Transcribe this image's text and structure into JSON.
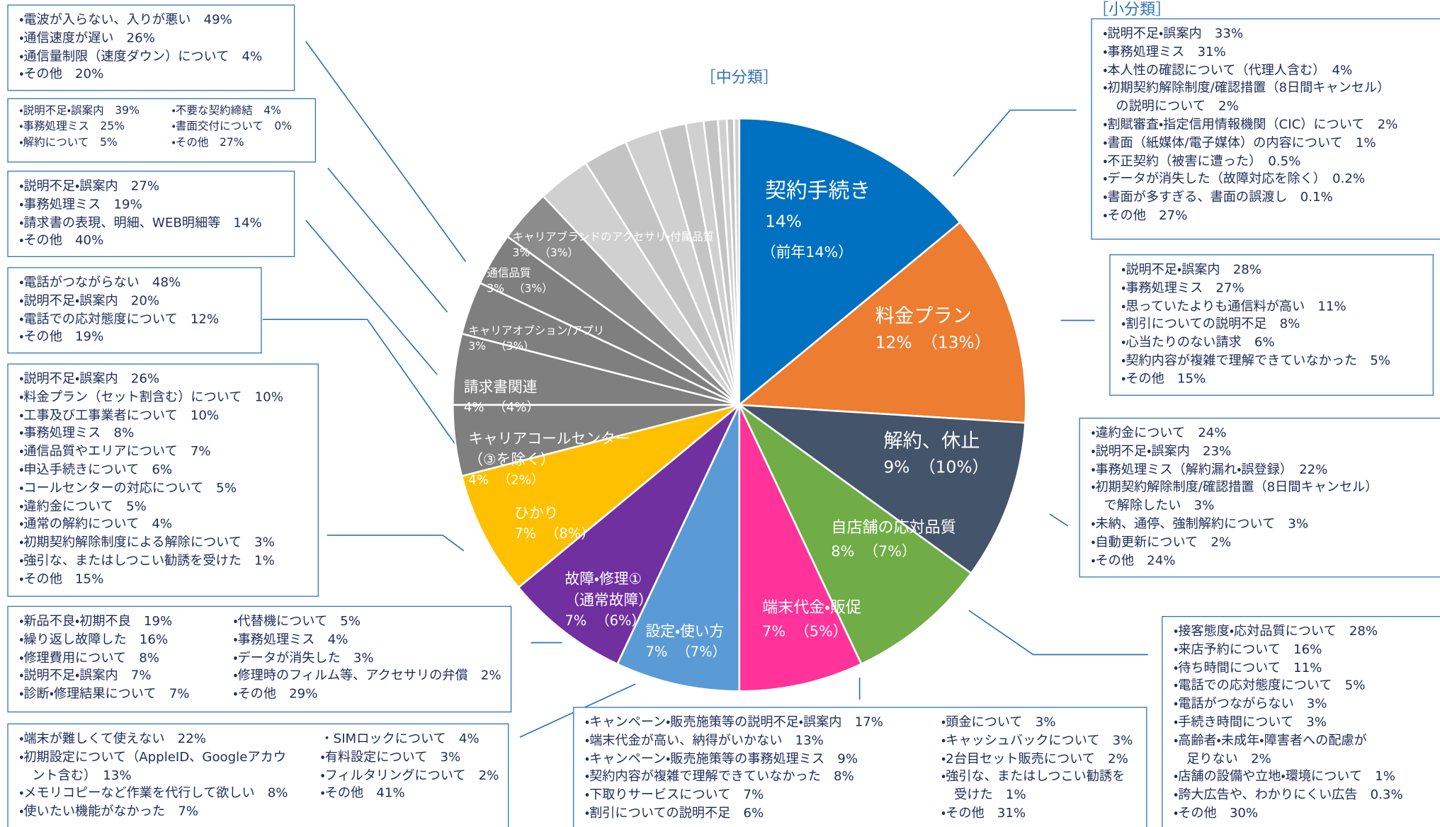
{
  "chart_data": {
    "type": "pie",
    "title": "［中分類］",
    "categories": [
      "契約手続き",
      "料金プラン",
      "解約、休止",
      "自店舗の応対品質",
      "端末代金・販促",
      "設定・使い方",
      "故障・修理①\n（通常故障）",
      "ひかり",
      "キャリアコールセンター\n（③を除く）",
      "請求書関連",
      "キャリアオプション/アプリ",
      "通信品質",
      "キャリアブランドのアクセサリ・付属品質",
      null,
      null,
      null,
      null,
      null,
      null,
      null,
      null,
      null
    ],
    "values": [
      14,
      12,
      9,
      8,
      7,
      7,
      7,
      7,
      4,
      4,
      3,
      3,
      3,
      3,
      2.5,
      2,
      1.5,
      1,
      0.8,
      0.5,
      0.4,
      0.3
    ],
    "value_labels": [
      "14%",
      "12%",
      "9%",
      "8%",
      "7%",
      "7%",
      "7%",
      "7%",
      "4%",
      "4%",
      "3%",
      "3%",
      "3%",
      null,
      null,
      null,
      null,
      null,
      null,
      null,
      null,
      null
    ],
    "prev_labels": [
      "（前年14%）",
      "（13%）",
      "（10%）",
      "（7%）",
      "（5%）",
      "（7%）",
      "（6%）",
      "（8%）",
      "（2%）",
      "（4%）",
      "（3%）",
      "（3%）",
      "（3%）",
      null,
      null,
      null,
      null,
      null,
      null,
      null,
      null,
      null
    ],
    "colors": [
      "#0070c0",
      "#ed7d31",
      "#44546a",
      "#70ad47",
      "#ff3399",
      "#5b9bd5",
      "#7030a0",
      "#ffc000",
      "#7f7f7f",
      "#7f7f7f",
      "#7f7f7f",
      "#7f7f7f",
      "#8c8c8c",
      "#d0d0d0",
      "#c4c4c4",
      "#d0d0d0",
      "#c4c4c4",
      "#d0d0d0",
      "#c4c4c4",
      "#d0d0d0",
      "#c4c4c4",
      "#d0d0d0"
    ]
  },
  "subtitle": "［小分類］",
  "boxes": [
    {
      "columns": [
        [
          "・電波が入らない、入りが悪い　49%",
          "・通信速度が遅い　26%",
          "・通信量制限（速度ダウン）について　4%",
          "・その他　20%"
        ]
      ]
    },
    {
      "columns": [
        [
          "・説明不足・誤案内　39%",
          "・事務処理ミス　25%",
          "・解約について　5%"
        ],
        [
          "・不要な契約締結　4%",
          "・書面交付について　0%",
          "・その他　27%"
        ]
      ]
    },
    {
      "columns": [
        [
          "・説明不足・誤案内　27%",
          "・事務処理ミス　19%",
          "・請求書の表現、明細、WEB明細等　14%",
          "・その他　40%"
        ]
      ]
    },
    {
      "columns": [
        [
          "・電話がつながらない　48%",
          "・説明不足・誤案内　20%",
          "・電話での応対態度について　12%",
          "・その他　19%"
        ]
      ]
    },
    {
      "columns": [
        [
          "・説明不足・誤案内　26%",
          "・料金プラン（セット割含む）について　10%",
          "・工事及び工事業者について　10%",
          "・事務処理ミス　8%",
          "・通信品質やエリアについて　7%",
          "・申込手続きについて　6%",
          "・コールセンターの対応について　5%",
          "・違約金について　5%",
          "・通常の解約について　4%",
          "・初期契約解除制度による解除について　3%",
          "・強引な、またはしつこい勧誘を受けた　1%",
          "・その他　15%"
        ]
      ]
    },
    {
      "columns": [
        [
          "・新品不良・初期不良　19%",
          "・繰り返し故障した　16%",
          "・修理費用について　8%",
          "・説明不足・誤案内　7%",
          "・診断・修理結果について　7%"
        ],
        [
          "・代替機について　5%",
          "・事務処理ミス　4%",
          "・データが消失した　3%",
          "・修理時のフィルム等、アクセサリの弁償　2%",
          "・その他　29%"
        ]
      ]
    },
    {
      "columns": [
        [
          "・端末が難しくて使えない　22%",
          "・初期設定について（AppleID、Googleアカウ",
          "　ント含む）　13%",
          "・メモリコピーなど作業を代行して欲しい　8%",
          "・使いたい機能がなかった　7%"
        ],
        [
          "・SIMロックについて　4%",
          "・有料設定について　3%",
          "・フィルタリングについて　2%",
          "・その他　41%"
        ]
      ]
    },
    {
      "columns": [
        [
          "・キャンペーン・販売施策等の説明不足・誤案内　17%",
          "・端末代金が高い、納得がいかない　13%",
          "・キャンペーン・販売施策等の事務処理ミス　9%",
          "・契約内容が複雑で理解できていなかった　8%",
          "・下取りサービスについて　7%",
          "・割引についての説明不足　6%"
        ],
        [
          "・頭金について　3%",
          "・キャッシュバックについて　3%",
          "・2台目セット販売について　2%",
          "・強引な、またはしつこい勧誘を",
          "　受けた　1%",
          "・その他　31%"
        ]
      ]
    },
    {
      "columns": [
        [
          "・説明不足・誤案内　33%",
          "・事務処理ミス　31%",
          "・本人性の確認について（代理人含む）　4%",
          "・初期契約解除制度/確認措置（8日間キャンセル）",
          "　の説明について　2%",
          "・割賦審査・指定信用情報機関（CIC）について　2%",
          "・書面（紙媒体/電子媒体）の内容について　1%",
          "・不正契約（被害に遭った）　0.5%",
          "・データが消失した（故障対応を除く）　0.2%",
          "・書面が多すぎる、書面の誤渡し　0.1%",
          "・その他　27%"
        ]
      ]
    },
    {
      "columns": [
        [
          "・説明不足・誤案内　28%",
          "・事務処理ミス　27%",
          "・思っていたよりも通信料が高い　11%",
          "・割引についての説明不足　8%",
          "・心当たりのない請求　6%",
          "・契約内容が複雑で理解できていなかった　5%",
          "・その他　15%"
        ]
      ]
    },
    {
      "columns": [
        [
          "・違約金について　24%",
          "・説明不足・誤案内　23%",
          "・事務処理ミス（解約漏れ・誤登録）　22%",
          "・初期契約解除制度/確認措置（8日間キャンセル）",
          "　で解除したい　3%",
          "・未納、通停、強制解約について　3%",
          "・自動更新について　2%",
          "・その他　24%"
        ]
      ]
    },
    {
      "columns": [
        [
          "・接客態度・応対品質について　28%",
          "・来店予約について　16%",
          "・待ち時間について　11%",
          "・電話での応対態度について　5%",
          "・電話がつながらない　3%",
          "・手続き時間について　3%",
          "・高齢者・未成年・障害者への配慮が",
          "　足りない　2%",
          "・店舗の設備や立地・環境について　1%",
          "・誇大広告や、わかりにくい広告　0.3%",
          "・その他　30%"
        ]
      ]
    }
  ]
}
